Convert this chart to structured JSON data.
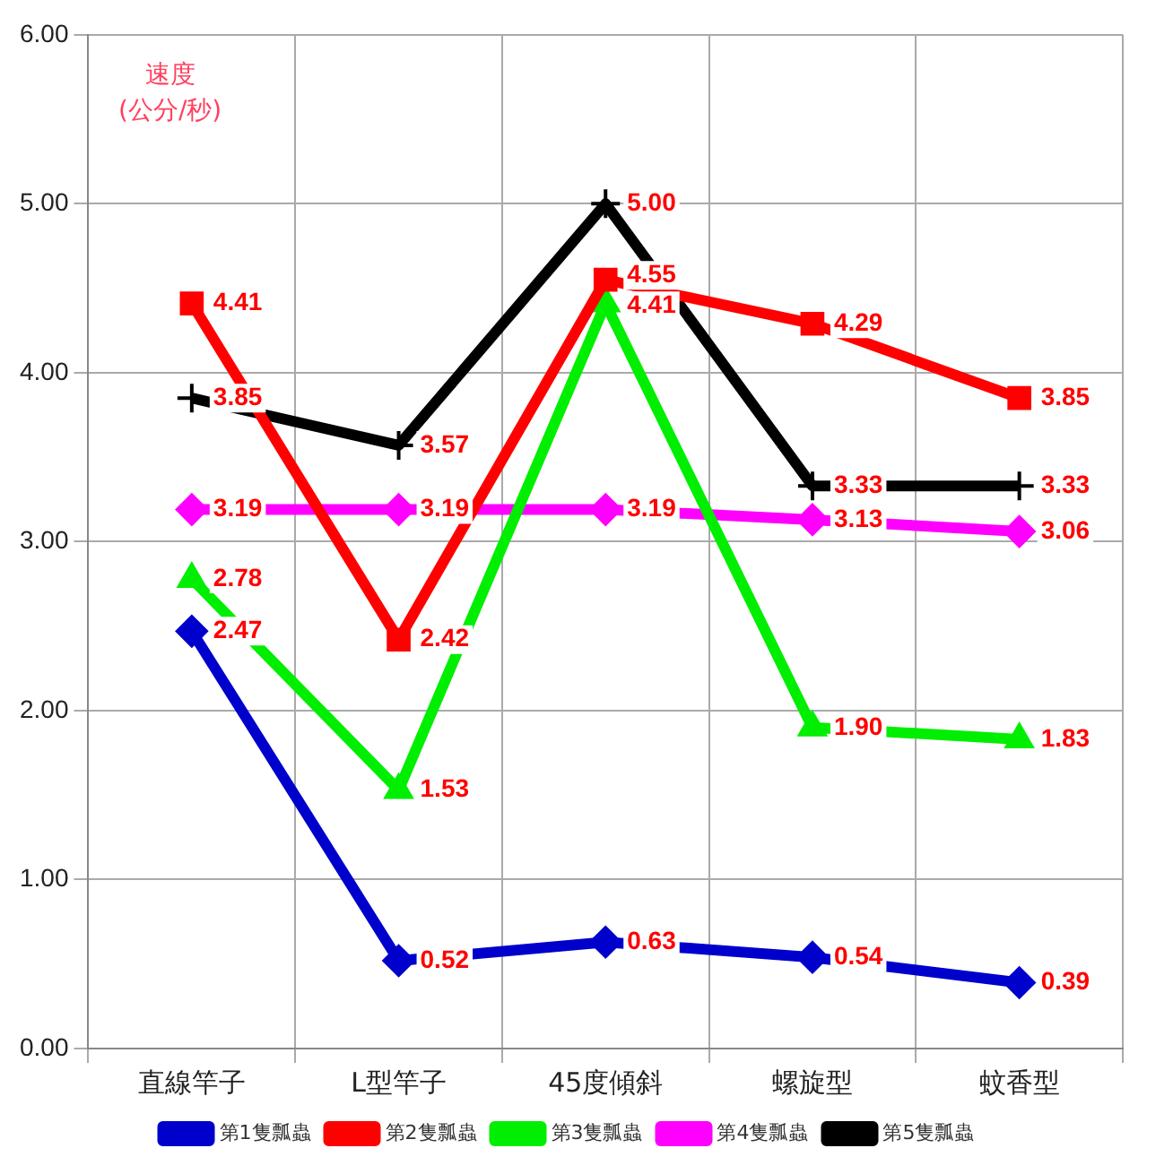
{
  "chart_data": {
    "type": "line",
    "ylabel": "速度\n(公分/秒)",
    "categories": [
      "直線竿子",
      "L型竿子",
      "45度傾斜",
      "螺旋型",
      "蚊香型"
    ],
    "series": [
      {
        "name": "第1隻瓢蟲",
        "color": "#0000cc",
        "marker": "diamond",
        "values": [
          2.47,
          0.52,
          0.63,
          0.54,
          0.39
        ],
        "value_labels": [
          "2.47",
          "0.52",
          "0.63",
          "0.54",
          "0.39"
        ]
      },
      {
        "name": "第2隻瓢蟲",
        "color": "#ff0000",
        "marker": "square",
        "values": [
          4.41,
          2.42,
          4.55,
          4.29,
          3.85
        ],
        "value_labels": [
          "4.41",
          "2.42",
          "4.55",
          "4.29",
          "3.85"
        ]
      },
      {
        "name": "第3隻瓢蟲",
        "color": "#00ee00",
        "marker": "triangle",
        "values": [
          2.78,
          1.53,
          4.41,
          1.9,
          1.83
        ],
        "value_labels": [
          "2.78",
          "1.53",
          "4.41",
          "1.90",
          "1.83"
        ]
      },
      {
        "name": "第4隻瓢蟲",
        "color": "#ff00ff",
        "marker": "diamond",
        "values": [
          3.19,
          3.19,
          3.19,
          3.13,
          3.06
        ],
        "value_labels": [
          "3.19",
          "3.19",
          "3.19",
          "3.13",
          "3.06"
        ]
      },
      {
        "name": "第5隻瓢蟲",
        "color": "#000000",
        "marker": "cross",
        "values": [
          3.85,
          3.57,
          5,
          3.33,
          3.33
        ],
        "value_labels": [
          "3.85",
          "3.57",
          "5.00",
          "3.33",
          "3.33"
        ]
      }
    ],
    "ylim": [
      0,
      6
    ],
    "yticks": [
      {
        "value": 0,
        "label": "0.00"
      },
      {
        "value": 1,
        "label": "1.00"
      },
      {
        "value": 2,
        "label": "2.00"
      },
      {
        "value": 3,
        "label": "3.00"
      },
      {
        "value": 4,
        "label": "4.00"
      },
      {
        "value": 5,
        "label": "5.00"
      },
      {
        "value": 6,
        "label": "6.00"
      }
    ],
    "grid": true,
    "legend": "bottom",
    "line_style": "solid"
  }
}
